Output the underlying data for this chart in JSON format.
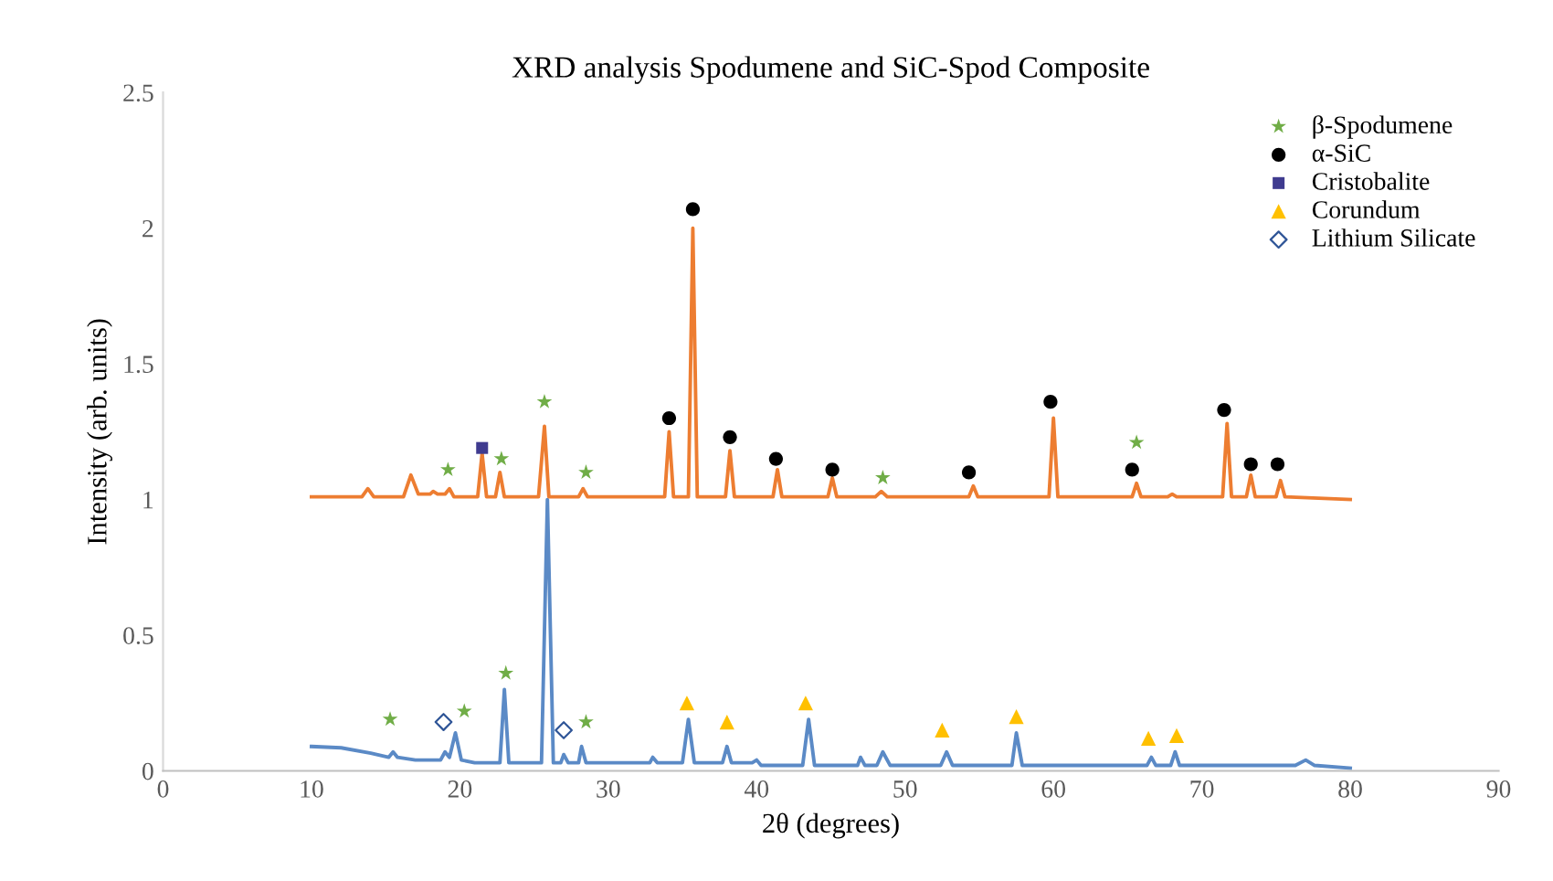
{
  "chart_data": {
    "type": "line",
    "title": "XRD analysis Spodumene and SiC-Spod Composite",
    "xlabel": "2θ (degrees)",
    "ylabel": "Intensity (arb. units)",
    "xlim": [
      0,
      90
    ],
    "xticks": [
      0,
      10,
      20,
      30,
      40,
      50,
      60,
      70,
      80,
      90
    ],
    "ylim": [
      0,
      2.5
    ],
    "yticks": [
      0,
      0.5,
      1,
      1.5,
      2,
      2.5
    ],
    "grid": false,
    "legend": "top right",
    "series": [
      {
        "color": "#5b8ac6",
        "x": [
          10,
          12,
          14,
          15.2,
          15.5,
          15.8,
          17,
          18.7,
          19.0,
          19.3,
          19.7,
          20.1,
          21,
          22.7,
          23.0,
          23.3,
          25.5,
          25.9,
          26.3,
          26.8,
          27.0,
          27.3,
          28.0,
          28.2,
          28.5,
          30,
          32.8,
          33.0,
          33.3,
          35.0,
          35.4,
          35.8,
          37.7,
          38.0,
          38.3,
          39.7,
          40.0,
          40.3,
          43.1,
          43.5,
          43.9,
          46.8,
          47.0,
          47.3,
          48.1,
          48.5,
          49.0,
          52.4,
          52.8,
          53.2,
          56,
          57.2,
          57.5,
          57.9,
          60,
          64,
          66.3,
          66.6,
          66.9,
          67.9,
          68.2,
          68.5,
          72,
          76.3,
          77,
          77.6,
          80
        ],
        "values": [
          0.09,
          0.085,
          0.065,
          0.05,
          0.07,
          0.05,
          0.04,
          0.04,
          0.07,
          0.05,
          0.14,
          0.04,
          0.03,
          0.03,
          0.3,
          0.03,
          0.03,
          1.0,
          0.03,
          0.03,
          0.06,
          0.03,
          0.03,
          0.09,
          0.03,
          0.03,
          0.03,
          0.05,
          0.03,
          0.03,
          0.19,
          0.03,
          0.03,
          0.09,
          0.03,
          0.03,
          0.04,
          0.02,
          0.02,
          0.19,
          0.02,
          0.02,
          0.05,
          0.02,
          0.02,
          0.07,
          0.02,
          0.02,
          0.07,
          0.02,
          0.02,
          0.02,
          0.14,
          0.02,
          0.02,
          0.02,
          0.02,
          0.05,
          0.02,
          0.02,
          0.07,
          0.02,
          0.02,
          0.02,
          0.04,
          0.02,
          0.01
        ]
      },
      {
        "color": "#ed7d31",
        "x": [
          10,
          13.4,
          13.8,
          14.2,
          16.2,
          16.7,
          17.2,
          18.0,
          18.2,
          18.5,
          19.0,
          19.3,
          19.6,
          21.2,
          21.5,
          21.8,
          22.4,
          22.7,
          23.0,
          25.3,
          25.7,
          26.0,
          28.0,
          28.3,
          28.6,
          33.8,
          34.1,
          34.4,
          35.4,
          35.7,
          36.0,
          37.9,
          38.2,
          38.5,
          41.1,
          41.4,
          41.7,
          44.8,
          45.1,
          45.4,
          48.0,
          48.4,
          48.8,
          54.3,
          54.6,
          54.9,
          59.7,
          60.0,
          60.3,
          65.3,
          65.6,
          65.9,
          67.7,
          68.0,
          68.3,
          71.4,
          71.7,
          72.0,
          73.0,
          73.3,
          73.6,
          75.0,
          75.3,
          75.6,
          80
        ],
        "values": [
          1.01,
          1.01,
          1.04,
          1.01,
          1.01,
          1.09,
          1.02,
          1.02,
          1.03,
          1.02,
          1.02,
          1.04,
          1.01,
          1.01,
          1.17,
          1.01,
          1.01,
          1.1,
          1.01,
          1.01,
          1.27,
          1.01,
          1.01,
          1.04,
          1.01,
          1.01,
          1.25,
          1.01,
          1.01,
          2.0,
          1.01,
          1.01,
          1.18,
          1.01,
          1.01,
          1.11,
          1.01,
          1.01,
          1.08,
          1.01,
          1.01,
          1.03,
          1.01,
          1.01,
          1.05,
          1.01,
          1.01,
          1.3,
          1.01,
          1.01,
          1.06,
          1.01,
          1.01,
          1.02,
          1.01,
          1.01,
          1.28,
          1.01,
          1.01,
          1.09,
          1.01,
          1.01,
          1.07,
          1.01,
          1.0
        ]
      },
      {
        "type": "scatter",
        "name": "β-Spodumene",
        "color": "#70ad47",
        "marker": "star",
        "x": [
          19.2,
          22.8,
          25.7,
          28.5,
          48.5,
          65.6,
          15.3,
          20.3,
          23.1,
          28.5
        ],
        "values": [
          1.11,
          1.15,
          1.36,
          1.1,
          1.08,
          1.21,
          0.19,
          0.22,
          0.36,
          0.18
        ]
      },
      {
        "type": "scatter",
        "name": "α-SiC",
        "color": "#000000",
        "marker": "circle",
        "x": [
          34.1,
          35.7,
          38.2,
          41.3,
          45.1,
          54.3,
          59.8,
          65.3,
          71.5,
          73.3,
          75.1
        ],
        "values": [
          1.3,
          2.07,
          1.23,
          1.15,
          1.11,
          1.1,
          1.36,
          1.11,
          1.33,
          1.13,
          1.13
        ]
      },
      {
        "type": "scatter",
        "name": "Cristobalite",
        "color": "#3f3b8f",
        "marker": "square",
        "x": [
          21.5
        ],
        "values": [
          1.19
        ]
      },
      {
        "type": "scatter",
        "name": "Corundum",
        "color": "#ffc000",
        "marker": "triangle",
        "x": [
          35.3,
          38.0,
          43.3,
          52.5,
          57.5,
          66.4,
          68.3
        ],
        "values": [
          0.25,
          0.18,
          0.25,
          0.15,
          0.2,
          0.12,
          0.13
        ]
      },
      {
        "type": "scatter",
        "name": "Lithium Silicate",
        "color": "#2f5597",
        "marker": "diamond",
        "x": [
          18.9,
          27.0
        ],
        "values": [
          0.18,
          0.15
        ]
      }
    ]
  }
}
